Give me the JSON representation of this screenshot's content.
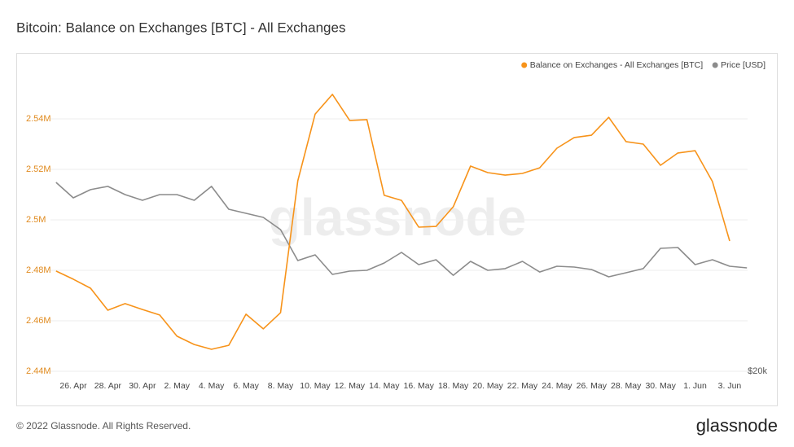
{
  "chart_data": {
    "type": "line",
    "title": "Bitcoin: Balance on Exchanges [BTC] - All Exchanges",
    "footer": "© 2022 Glassnode. All Rights Reserved.",
    "brand": "glassnode",
    "categories": [
      null,
      "26. Apr",
      null,
      "28. Apr",
      null,
      "30. Apr",
      null,
      "2. May",
      null,
      "4. May",
      null,
      "6. May",
      null,
      "8. May",
      null,
      "10. May",
      null,
      "12. May",
      null,
      "14. May",
      null,
      "16. May",
      null,
      "18. May",
      null,
      "20. May",
      null,
      "22. May",
      null,
      "24. May",
      null,
      "26. May",
      null,
      "28. May",
      null,
      "30. May",
      null,
      "1. Jun",
      null,
      "3. Jun",
      null
    ],
    "series": [
      {
        "name": "Balance on Exchanges - All Exchanges [BTC]",
        "color": "#f7931a",
        "values": [
          2479700,
          2476500,
          2472900,
          2464200,
          2466800,
          2464500,
          2462300,
          2453900,
          2450600,
          2448700,
          2450300,
          2462600,
          2456800,
          2463200,
          2515500,
          2541900,
          2549700,
          2539400,
          2539700,
          2509700,
          2507700,
          2497100,
          2497400,
          2505200,
          2521300,
          2518700,
          2517700,
          2518400,
          2520600,
          2528400,
          2532600,
          2533500,
          2540600,
          2531000,
          2530000,
          2521600,
          2526500,
          2527400,
          2515200,
          2491600,
          null
        ]
      },
      {
        "name": "Price [USD]",
        "color": "#8c8c8c",
        "axis": "y2",
        "values": [
          36840,
          35460,
          36190,
          36480,
          35750,
          35240,
          35750,
          35750,
          35240,
          36480,
          34440,
          34080,
          33720,
          32630,
          29870,
          30380,
          28640,
          28930,
          29000,
          29650,
          30600,
          29510,
          29940,
          28560,
          29800,
          29000,
          29150,
          29800,
          28850,
          29360,
          29290,
          29070,
          28420,
          28780,
          29150,
          30960,
          31030,
          29510,
          29940,
          29360,
          29220
        ]
      }
    ],
    "ylim": [
      2440000,
      2560000
    ],
    "yticks": [
      {
        "value": 2440000,
        "label": "2.44M"
      },
      {
        "value": 2460000,
        "label": "2.46M"
      },
      {
        "value": 2480000,
        "label": "2.48M"
      },
      {
        "value": 2500000,
        "label": "2.5M"
      },
      {
        "value": 2520000,
        "label": "2.52M"
      },
      {
        "value": 2540000,
        "label": "2.54M"
      }
    ],
    "y2lim": [
      20000,
      47000
    ],
    "y2ticks": [
      {
        "value": 20000,
        "label": "$20k"
      }
    ],
    "grid": true,
    "legend": "top-right"
  }
}
